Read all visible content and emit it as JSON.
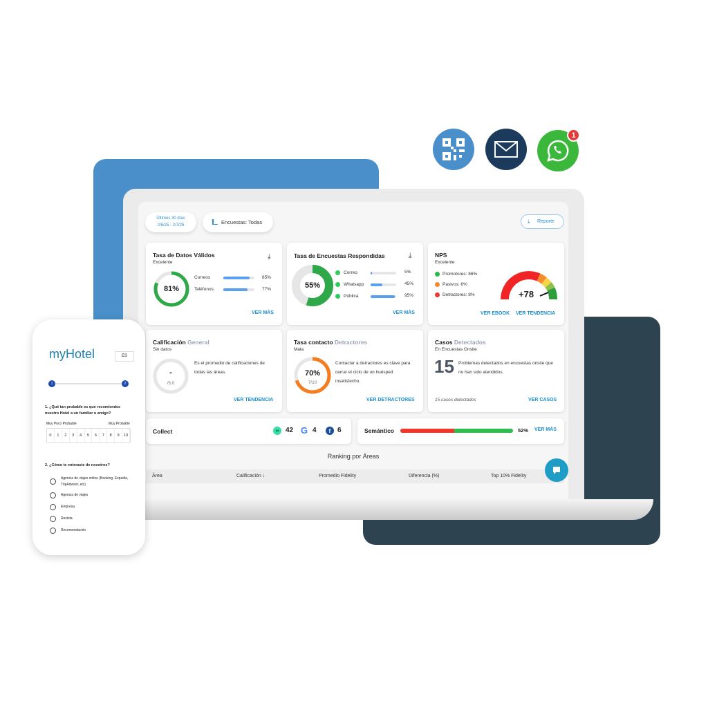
{
  "channels": {
    "icons": [
      "qr-code-icon",
      "envelope-icon",
      "whatsapp-icon"
    ],
    "whatsapp_badge": "1",
    "colors": {
      "qr": "#4a8fc9",
      "mail": "#1b3a5c",
      "whatsapp": "#3bb83b"
    }
  },
  "filters": {
    "date_label": "Últimos 30 días",
    "date_range": "2/6/25 - 2/7/25",
    "surveys": "Encuestas: Todas",
    "report": "Reporte"
  },
  "valid_data": {
    "title": "Tasa de Datos Válidos",
    "status": "Excelente",
    "value": "81%",
    "percent": 81,
    "rows": [
      {
        "label": "Correos",
        "value": "85%",
        "pct": 85
      },
      {
        "label": "Teléfonos",
        "value": "77%",
        "pct": 77
      }
    ],
    "link": "VER MÁS"
  },
  "answered": {
    "title": "Tasa de Encuestas Respondidas",
    "value": "55%",
    "percent": 55,
    "rows": [
      {
        "label": "Correo",
        "value": "5%",
        "pct": 5
      },
      {
        "label": "Whatsapp",
        "value": "45%",
        "pct": 45
      },
      {
        "label": "Pública",
        "value": "95%",
        "pct": 95
      }
    ],
    "link": "VER MÁS"
  },
  "nps": {
    "title": "NPS",
    "status": "Excelente",
    "items": [
      {
        "label": "Promotores: 86%",
        "color": "#2eb84b"
      },
      {
        "label": "Pasivos: 6%",
        "color": "#f58b2a"
      },
      {
        "label": "Detractores: 8%",
        "color": "#ea3b3b"
      }
    ],
    "score": "+78",
    "link1": "VER EBOOK",
    "link2": "VER TENDENCIA"
  },
  "rating": {
    "title_a": "Calificación",
    "title_b": "General",
    "status": "Sin datos",
    "value": "-",
    "scale": "/5.0",
    "desc": "Es el promedio de calificaciones de todas las áreas.",
    "link": "VER TENDENCIA"
  },
  "detractors": {
    "title_a": "Tasa contacto",
    "title_b": "Detractores",
    "status": "Mala",
    "value": "70%",
    "percent": 70,
    "fraction": "7/10",
    "desc": "Contactar a detractores es clave para cerrar el ciclo de un huésped insatisfecho.",
    "link": "VER DETRACTORES"
  },
  "cases": {
    "title_a": "Casos",
    "title_b": "Detectados",
    "subtitle": "En Encuestas Onsite",
    "count": "15",
    "desc": "Problemas detectados en encuestas onsite que no han sido atendidos.",
    "footer": "15 casos detectados",
    "link": "VER CASOS"
  },
  "collect": {
    "title": "Collect",
    "tripadvisor": "42",
    "google": "4",
    "facebook": "6"
  },
  "semantic": {
    "title": "Semántico",
    "value": "52%",
    "negative_pct": 48,
    "link": "VER MÁS"
  },
  "ranking": {
    "title": "Ranking por Áreas",
    "columns": [
      "Área",
      "Calificación",
      "Promedio Fidelity",
      "Diferencia (%)",
      "Top 10% Fidelity"
    ]
  },
  "phone": {
    "logo": "myHotel",
    "lang": "ES",
    "steps": [
      "1",
      "2"
    ],
    "q1": "1. ¿Qué tan probable es que recomiendes nuestro Hotel a un familiar o amigo?",
    "low": "Muy Poco Probable",
    "high": "Muy Probable",
    "scale": [
      "0",
      "1",
      "2",
      "3",
      "4",
      "5",
      "6",
      "7",
      "8",
      "9",
      "10"
    ],
    "q2": "2. ¿Cómo te enteraste de nosotros?",
    "options": [
      "Agencia de viajes online (Booking, Expedia, TripAdvisor, etc)",
      "Agencia de viajes",
      "Empresa",
      "Revista",
      "Recomendación"
    ]
  }
}
